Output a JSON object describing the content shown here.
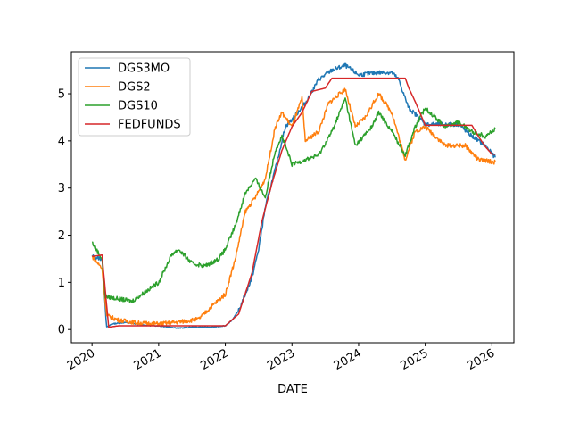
{
  "chart_data": {
    "type": "line",
    "title": "",
    "xlabel": "DATE",
    "ylabel": "",
    "xlim": [
      2019.69,
      2026.33
    ],
    "ylim": [
      -0.28,
      5.89
    ],
    "xticks": [
      2020,
      2021,
      2022,
      2023,
      2024,
      2025,
      2026
    ],
    "xtick_labels": [
      "2020",
      "2021",
      "2022",
      "2023",
      "2024",
      "2025",
      "2026"
    ],
    "yticks": [
      0,
      1,
      2,
      3,
      4,
      5
    ],
    "ytick_labels": [
      "0",
      "1",
      "2",
      "3",
      "4",
      "5"
    ],
    "grid": false,
    "legend_position": "upper-left",
    "series": [
      {
        "name": "DGS3MO",
        "color": "#1f77b4",
        "points": [
          [
            2020.0,
            1.55
          ],
          [
            2020.15,
            1.5
          ],
          [
            2020.22,
            0.05
          ],
          [
            2020.3,
            0.12
          ],
          [
            2020.5,
            0.15
          ],
          [
            2020.8,
            0.09
          ],
          [
            2021.0,
            0.08
          ],
          [
            2021.3,
            0.03
          ],
          [
            2021.5,
            0.05
          ],
          [
            2021.8,
            0.05
          ],
          [
            2022.0,
            0.08
          ],
          [
            2022.1,
            0.2
          ],
          [
            2022.2,
            0.4
          ],
          [
            2022.4,
            1.1
          ],
          [
            2022.5,
            1.7
          ],
          [
            2022.6,
            2.6
          ],
          [
            2022.75,
            3.4
          ],
          [
            2022.9,
            4.3
          ],
          [
            2023.0,
            4.45
          ],
          [
            2023.2,
            4.8
          ],
          [
            2023.4,
            5.3
          ],
          [
            2023.6,
            5.5
          ],
          [
            2023.8,
            5.6
          ],
          [
            2024.0,
            5.4
          ],
          [
            2024.3,
            5.45
          ],
          [
            2024.5,
            5.45
          ],
          [
            2024.6,
            5.3
          ],
          [
            2024.75,
            4.7
          ],
          [
            2024.9,
            4.5
          ],
          [
            2025.0,
            4.35
          ],
          [
            2025.5,
            4.35
          ],
          [
            2025.7,
            4.1
          ],
          [
            2025.9,
            3.9
          ],
          [
            2026.05,
            3.65
          ]
        ]
      },
      {
        "name": "DGS2",
        "color": "#ff7f0e",
        "points": [
          [
            2020.0,
            1.55
          ],
          [
            2020.15,
            1.3
          ],
          [
            2020.22,
            0.3
          ],
          [
            2020.4,
            0.2
          ],
          [
            2020.7,
            0.14
          ],
          [
            2021.0,
            0.12
          ],
          [
            2021.3,
            0.16
          ],
          [
            2021.6,
            0.22
          ],
          [
            2021.8,
            0.5
          ],
          [
            2022.0,
            0.75
          ],
          [
            2022.15,
            1.5
          ],
          [
            2022.3,
            2.5
          ],
          [
            2022.45,
            2.8
          ],
          [
            2022.6,
            3.2
          ],
          [
            2022.75,
            4.3
          ],
          [
            2022.85,
            4.6
          ],
          [
            2023.0,
            4.3
          ],
          [
            2023.15,
            4.9
          ],
          [
            2023.2,
            4.0
          ],
          [
            2023.4,
            4.2
          ],
          [
            2023.55,
            4.8
          ],
          [
            2023.8,
            5.1
          ],
          [
            2023.95,
            4.3
          ],
          [
            2024.1,
            4.5
          ],
          [
            2024.3,
            5.0
          ],
          [
            2024.5,
            4.6
          ],
          [
            2024.7,
            3.6
          ],
          [
            2024.85,
            4.2
          ],
          [
            2025.0,
            4.3
          ],
          [
            2025.3,
            3.9
          ],
          [
            2025.6,
            3.9
          ],
          [
            2025.8,
            3.6
          ],
          [
            2026.05,
            3.55
          ]
        ]
      },
      {
        "name": "DGS10",
        "color": "#2ca02c",
        "points": [
          [
            2020.0,
            1.85
          ],
          [
            2020.15,
            1.5
          ],
          [
            2020.2,
            0.7
          ],
          [
            2020.4,
            0.65
          ],
          [
            2020.6,
            0.6
          ],
          [
            2020.8,
            0.8
          ],
          [
            2021.0,
            1.0
          ],
          [
            2021.2,
            1.6
          ],
          [
            2021.3,
            1.7
          ],
          [
            2021.5,
            1.4
          ],
          [
            2021.7,
            1.35
          ],
          [
            2021.9,
            1.5
          ],
          [
            2022.0,
            1.7
          ],
          [
            2022.15,
            2.2
          ],
          [
            2022.3,
            2.9
          ],
          [
            2022.45,
            3.2
          ],
          [
            2022.6,
            2.8
          ],
          [
            2022.75,
            3.8
          ],
          [
            2022.85,
            4.1
          ],
          [
            2023.0,
            3.5
          ],
          [
            2023.2,
            3.6
          ],
          [
            2023.4,
            3.7
          ],
          [
            2023.6,
            4.2
          ],
          [
            2023.8,
            4.9
          ],
          [
            2023.95,
            3.9
          ],
          [
            2024.2,
            4.3
          ],
          [
            2024.3,
            4.6
          ],
          [
            2024.5,
            4.2
          ],
          [
            2024.7,
            3.7
          ],
          [
            2024.85,
            4.3
          ],
          [
            2025.0,
            4.7
          ],
          [
            2025.3,
            4.3
          ],
          [
            2025.5,
            4.4
          ],
          [
            2025.7,
            4.2
          ],
          [
            2025.9,
            4.1
          ],
          [
            2026.05,
            4.25
          ]
        ]
      },
      {
        "name": "FEDFUNDS",
        "color": "#d62728",
        "points": [
          [
            2020.0,
            1.55
          ],
          [
            2020.15,
            1.58
          ],
          [
            2020.25,
            0.05
          ],
          [
            2020.4,
            0.08
          ],
          [
            2021.0,
            0.08
          ],
          [
            2022.0,
            0.08
          ],
          [
            2022.2,
            0.33
          ],
          [
            2022.4,
            1.2
          ],
          [
            2022.55,
            2.3
          ],
          [
            2022.7,
            3.1
          ],
          [
            2022.85,
            3.8
          ],
          [
            2023.0,
            4.3
          ],
          [
            2023.15,
            4.6
          ],
          [
            2023.3,
            5.05
          ],
          [
            2023.5,
            5.12
          ],
          [
            2023.6,
            5.33
          ],
          [
            2024.7,
            5.33
          ],
          [
            2024.75,
            5.13
          ],
          [
            2024.85,
            4.83
          ],
          [
            2025.0,
            4.33
          ],
          [
            2025.7,
            4.33
          ],
          [
            2025.8,
            4.09
          ],
          [
            2025.9,
            3.88
          ],
          [
            2026.0,
            3.72
          ],
          [
            2026.05,
            3.72
          ]
        ]
      }
    ]
  }
}
